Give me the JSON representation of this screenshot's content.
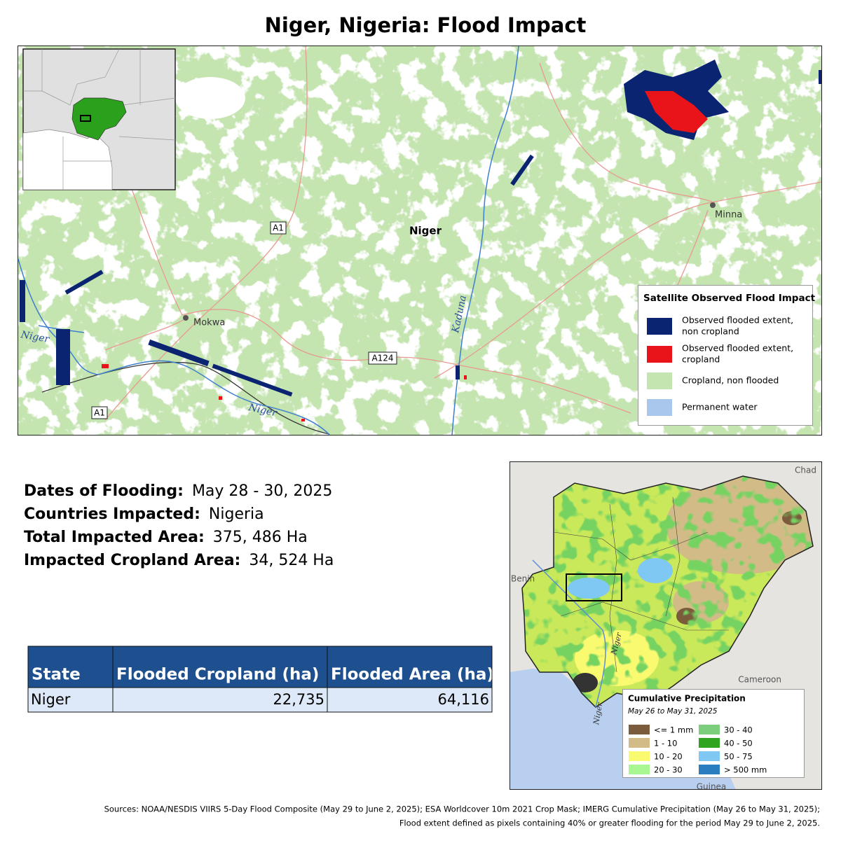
{
  "title": "Niger, Nigeria: Flood Impact",
  "main_map": {
    "place_labels": [
      "Niger",
      "Minna",
      "Mokwa"
    ],
    "road_labels": [
      "A1",
      "A1",
      "A124"
    ],
    "river_labels": [
      "Niger",
      "Niger",
      "Kaduna"
    ],
    "legend": {
      "title": "Satellite Observed Flood Impact",
      "items": [
        {
          "label": [
            "Observed flooded extent,",
            "non cropland"
          ],
          "color": "#0b2472"
        },
        {
          "label": [
            "Observed flooded extent,",
            "cropland"
          ],
          "color": "#e8141a"
        },
        {
          "label": [
            "Cropland, non flooded"
          ],
          "color": "#c4e4b0"
        },
        {
          "label": [
            "Permanent water"
          ],
          "color": "#a9c6ec"
        }
      ]
    }
  },
  "facts": [
    {
      "label": "Dates of Flooding:",
      "value": "May 28 - 30, 2025"
    },
    {
      "label": "Countries Impacted:",
      "value": "Nigeria"
    },
    {
      "label": "Total Impacted Area:",
      "value": "375, 486 Ha"
    },
    {
      "label": "Impacted Cropland Area:",
      "value": "34, 524 Ha"
    }
  ],
  "table": {
    "headers": [
      "State",
      "Flooded Cropland (ha)",
      "Flooded Area (ha)"
    ],
    "rows": [
      [
        "Niger",
        "22,735",
        "64,116"
      ]
    ]
  },
  "precip_map": {
    "labels": [
      "Chad",
      "Benin",
      "Cameroon",
      "Guinea"
    ],
    "river_labels": [
      "Niger",
      "Niger"
    ],
    "legend": {
      "title": "Cumulative Precipitation",
      "subtitle": "May 26 to May 31, 2025",
      "items": [
        {
          "label": "<= 1 mm",
          "color": "#7a5c3c"
        },
        {
          "label": "1 - 10",
          "color": "#d3bb88"
        },
        {
          "label": "10 - 20",
          "color": "#fafa70"
        },
        {
          "label": "20 - 30",
          "color": "#a9f792"
        },
        {
          "label": "30 - 40",
          "color": "#7ccd7c"
        },
        {
          "label": "40 - 50",
          "color": "#2fa51f"
        },
        {
          "label": "50 - 75",
          "color": "#80c8f4"
        },
        {
          "label": "> 500 mm",
          "color": "#2a7ec0"
        }
      ]
    }
  },
  "sources": [
    "Sources: NOAA/NESDIS VIIRS 5-Day Flood Composite (May 29 to June 2, 2025); ESA Worldcover 10m 2021 Crop Mask; IMERG Cumulative Precipitation (May 26 to May 31, 2025);",
    "Flood extent defined as pixels containing 40% or greater flooding for the period May 29 to June 2, 2025."
  ]
}
